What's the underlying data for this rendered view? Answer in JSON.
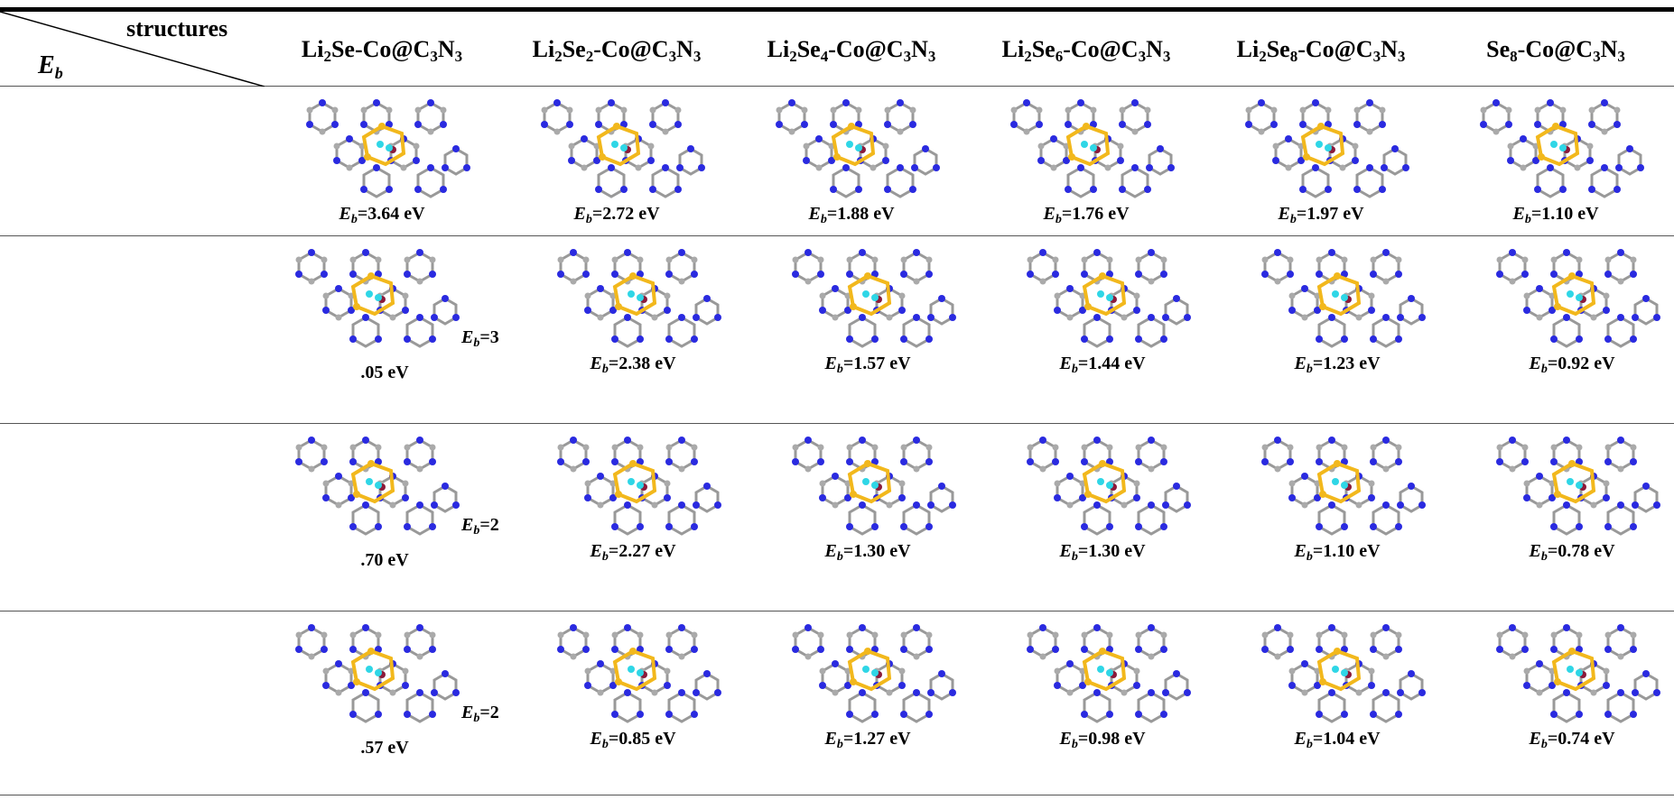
{
  "corner": {
    "top": "structures",
    "symbol": "E",
    "sub": "b"
  },
  "columns": [
    [
      [
        "Li",
        0
      ],
      [
        "2",
        1
      ],
      [
        "Se-Co@C",
        0
      ],
      [
        "3",
        1
      ],
      [
        "N",
        0
      ],
      [
        "3",
        1
      ]
    ],
    [
      [
        "Li",
        0
      ],
      [
        "2",
        1
      ],
      [
        "Se",
        0
      ],
      [
        "2",
        1
      ],
      [
        "-Co@C",
        0
      ],
      [
        "3",
        1
      ],
      [
        "N",
        0
      ],
      [
        "3",
        1
      ]
    ],
    [
      [
        "Li",
        0
      ],
      [
        "2",
        1
      ],
      [
        "Se",
        0
      ],
      [
        "4",
        1
      ],
      [
        "-Co@C",
        0
      ],
      [
        "3",
        1
      ],
      [
        "N",
        0
      ],
      [
        "3",
        1
      ]
    ],
    [
      [
        "Li",
        0
      ],
      [
        "2",
        1
      ],
      [
        "Se",
        0
      ],
      [
        "6",
        1
      ],
      [
        "-Co@C",
        0
      ],
      [
        "3",
        1
      ],
      [
        "N",
        0
      ],
      [
        "3",
        1
      ]
    ],
    [
      [
        "Li",
        0
      ],
      [
        "2",
        1
      ],
      [
        "Se",
        0
      ],
      [
        "8",
        1
      ],
      [
        "-Co@C",
        0
      ],
      [
        "3",
        1
      ],
      [
        "N",
        0
      ],
      [
        "3",
        1
      ]
    ],
    [
      [
        "Se",
        0
      ],
      [
        "8",
        1
      ],
      [
        "-Co@C",
        0
      ],
      [
        "3",
        1
      ],
      [
        "N",
        0
      ],
      [
        "3",
        1
      ]
    ]
  ],
  "rows": [
    [
      "=3.64 eV",
      "=2.72 eV",
      "=1.88 eV",
      "=1.76 eV",
      "=1.97 eV",
      "=1.10 eV"
    ],
    [
      [
        "=3",
        ".05 eV"
      ],
      "=2.38 eV",
      "=1.57 eV",
      "=1.44 eV",
      "=1.23 eV",
      "=0.92 eV"
    ],
    [
      [
        "=2",
        ".70 eV"
      ],
      "=2.27 eV",
      "=1.30 eV",
      "=1.30 eV",
      "=1.10 eV",
      "=0.78 eV"
    ],
    [
      [
        "=2",
        ".57 eV"
      ],
      "=0.85 eV",
      "=1.27 eV",
      "=0.98 eV",
      "=1.04 eV",
      "=0.74 eV"
    ]
  ]
}
